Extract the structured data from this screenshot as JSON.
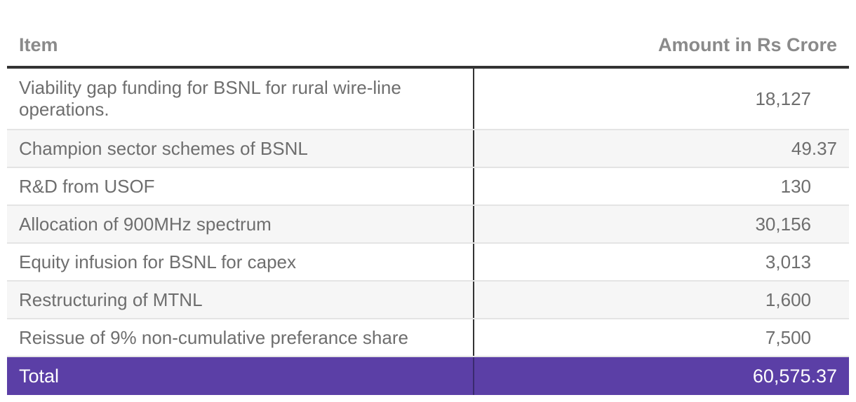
{
  "table": {
    "headers": {
      "item": "Item",
      "amount": "Amount in Rs Crore"
    },
    "rows": [
      {
        "item": "Viability gap funding for BSNL for rural wire-line operations.",
        "amount": "18,127"
      },
      {
        "item": "Champion sector schemes of BSNL",
        "amount": "49.37"
      },
      {
        "item": "R&D from USOF",
        "amount": "130"
      },
      {
        "item": "Allocation of 900MHz spectrum",
        "amount": "30,156"
      },
      {
        "item": "Equity infusion for BSNL for capex",
        "amount": "3,013"
      },
      {
        "item": "Restructuring of MTNL",
        "amount": "1,600"
      },
      {
        "item": "Reissue of 9% non-cumulative preferance share",
        "amount": "7,500"
      }
    ],
    "total": {
      "label": "Total",
      "amount": "60,575.37"
    }
  },
  "colors": {
    "header_text": "#8a8a8a",
    "body_text": "#6e6e6e",
    "total_background": "#5b3fa6",
    "alt_row_background": "#f6f6f6"
  }
}
